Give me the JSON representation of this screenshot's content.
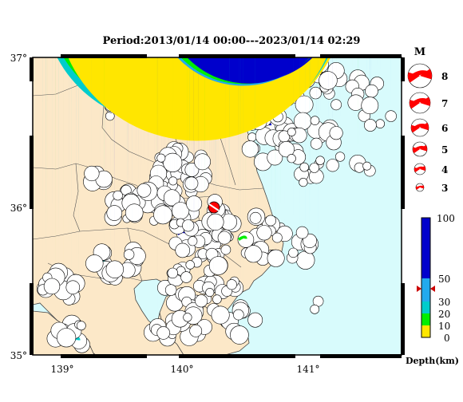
{
  "title": "Period:2013/01/14 00:00---2023/01/14 02:29",
  "map": {
    "lat_labels": [
      "37°",
      "36°",
      "35°"
    ],
    "lon_labels": [
      "139°",
      "140°",
      "141°"
    ],
    "land_color": "#fce8c8",
    "sea_color": "#d8fbfc",
    "epicenter_marker_color": "#ff0000"
  },
  "magnitude_legend": {
    "title": "M",
    "items": [
      "8",
      "7",
      "6",
      "5",
      "4",
      "3"
    ],
    "color": "#ff0000"
  },
  "depth_legend": {
    "labels": [
      "100",
      "50",
      "30",
      "20",
      "10",
      "0"
    ],
    "axis_label": "Depth(km)",
    "bands": [
      {
        "from": 0,
        "to": 10,
        "color": "#ffe600"
      },
      {
        "from": 10,
        "to": 20,
        "color": "#00ee00"
      },
      {
        "from": 20,
        "to": 30,
        "color": "#00cccc"
      },
      {
        "from": 30,
        "to": 50,
        "color": "#22aaee"
      },
      {
        "from": 50,
        "to": 100,
        "color": "#0000cc"
      }
    ]
  }
}
